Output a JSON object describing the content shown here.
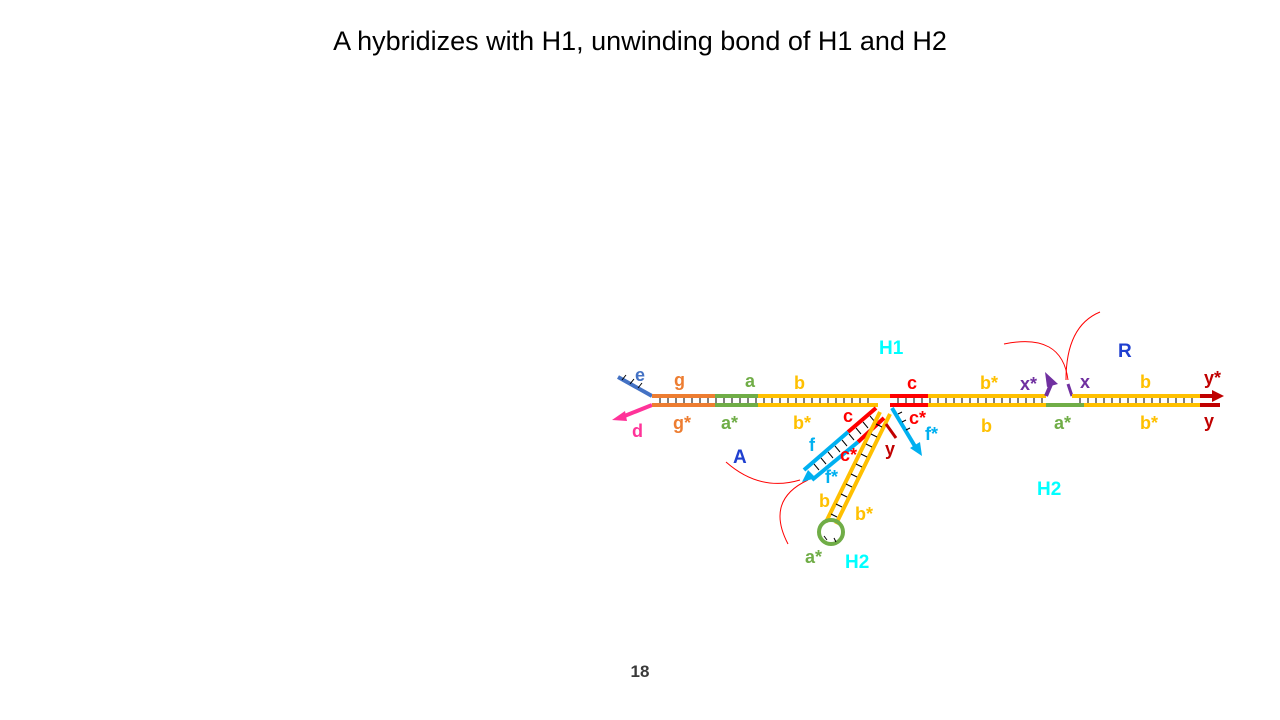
{
  "slide": {
    "title": "A hybridizes with H1, unwinding bond of H1 and H2",
    "number": "18"
  },
  "colors": {
    "e": "#4472C4",
    "g": "#ED7D31",
    "a": "#70AD47",
    "b": "#FFC000",
    "c": "#FF0000",
    "y": "#C00000",
    "x": "#7030A0",
    "f": "#00B0F0",
    "d": "#FF3399",
    "complex_label": "#1F3FD0",
    "hairpin_label": "#00FFFF"
  },
  "labels": {
    "h1": "H1",
    "r": "R",
    "a_complex": "A",
    "h2_right": "H2",
    "h2_bottom": "H2",
    "top_strand": {
      "e": "e",
      "g": "g",
      "a": "a",
      "b": "b",
      "c": "c",
      "b_star": "b*",
      "x_star": "x*",
      "x": "x",
      "b2": "b",
      "y_star": "y*"
    },
    "bottom_strand": {
      "d": "d",
      "g_star": "g*",
      "a_star": "a*",
      "b_star": "b*",
      "c_star": "c*",
      "f_star": "f*",
      "b": "b",
      "a_star2": "a*",
      "b_star2": "b*",
      "y": "y"
    },
    "branch": {
      "c": "c",
      "f": "f",
      "c_star": "c*",
      "f_star": "f*",
      "y": "y",
      "b": "b",
      "b_star": "b*",
      "a_star": "a*"
    }
  }
}
